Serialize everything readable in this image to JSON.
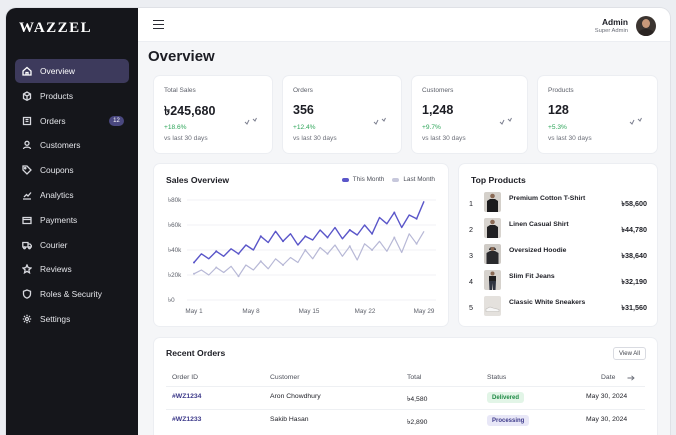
{
  "brand": {
    "name": "WAZZEL"
  },
  "sidebar": {
    "items": [
      {
        "label": "Overview",
        "icon": "home-icon",
        "active": true
      },
      {
        "label": "Products",
        "icon": "box-icon"
      },
      {
        "label": "Orders",
        "icon": "cart-icon",
        "badge": "12"
      },
      {
        "label": "Customers",
        "icon": "user-icon"
      },
      {
        "label": "Coupons",
        "icon": "tag-icon"
      },
      {
        "label": "Analytics",
        "icon": "chart-icon"
      },
      {
        "label": "Payments",
        "icon": "wallet-icon"
      },
      {
        "label": "Courier",
        "icon": "truck-icon"
      },
      {
        "label": "Reviews",
        "icon": "star-icon"
      },
      {
        "label": "Roles & Security",
        "icon": "shield-icon"
      },
      {
        "label": "Settings",
        "icon": "gear-icon"
      }
    ]
  },
  "header": {
    "user_name": "Admin",
    "user_role": "Super Admin"
  },
  "page": {
    "title": "Overview"
  },
  "stats": [
    {
      "label": "Total Sales",
      "value": "৳245,680",
      "change": "+18.6%",
      "sub": "vs last 30 days"
    },
    {
      "label": "Orders",
      "value": "356",
      "change": "+12.4%",
      "sub": "vs last 30 days"
    },
    {
      "label": "Customers",
      "value": "1,248",
      "change": "+9.7%",
      "sub": "vs last 30 days"
    },
    {
      "label": "Products",
      "value": "128",
      "change": "+5.3%",
      "sub": "vs last 30 days"
    }
  ],
  "sales_overview": {
    "title": "Sales Overview",
    "legend_this": "This Month",
    "legend_last": "Last Month"
  },
  "chart_data": {
    "type": "line",
    "title": "Sales Overview",
    "x_ticks": [
      "May 1",
      "May 8",
      "May 15",
      "May 22",
      "May 29"
    ],
    "y_ticks": [
      "৳0",
      "৳20k",
      "৳40k",
      "৳60k",
      "৳80k"
    ],
    "ylim": [
      0,
      80
    ],
    "y_unit": "k",
    "grid": true,
    "legend_position": "top-right",
    "colors": {
      "this_month": "#5a56c9",
      "last_month": "#b7b8d6"
    },
    "series": [
      {
        "name": "This Month",
        "values": [
          30,
          37,
          33,
          39,
          35,
          41,
          37,
          44,
          40,
          51,
          46,
          55,
          47,
          53,
          44,
          51,
          48,
          56,
          50,
          58,
          49,
          56,
          52,
          60,
          53,
          66,
          61,
          70,
          58,
          68,
          65,
          79
        ]
      },
      {
        "name": "Last Month",
        "values": [
          21,
          24,
          20,
          26,
          22,
          27,
          19,
          28,
          24,
          31,
          25,
          33,
          28,
          34,
          30,
          40,
          33,
          42,
          37,
          44,
          35,
          43,
          32,
          45,
          40,
          47,
          39,
          50,
          38,
          53,
          45,
          55
        ]
      }
    ]
  },
  "top_products": {
    "title": "Top Products",
    "items": [
      {
        "rank": "1",
        "name": "Premium Cotton T-Shirt",
        "price": "৳58,600"
      },
      {
        "rank": "2",
        "name": "Linen Casual Shirt",
        "price": "৳44,780"
      },
      {
        "rank": "3",
        "name": "Oversized Hoodie",
        "price": "৳38,640"
      },
      {
        "rank": "4",
        "name": "Slim Fit Jeans",
        "price": "৳32,190"
      },
      {
        "rank": "5",
        "name": "Classic White Sneakers",
        "price": "৳31,560"
      }
    ]
  },
  "recent_orders": {
    "title": "Recent Orders",
    "view_all": "View All",
    "columns": [
      "Order ID",
      "Customer",
      "Total",
      "Status",
      "Date"
    ],
    "rows": [
      {
        "id": "#WZ1234",
        "customer": "Aron Chowdhury",
        "total": "৳4,580",
        "status": "Delivered",
        "date": "May 30, 2024"
      },
      {
        "id": "#WZ1233",
        "customer": "Sakib Hasan",
        "total": "৳2,890",
        "status": "Processing",
        "date": "May 30, 2024"
      }
    ]
  }
}
